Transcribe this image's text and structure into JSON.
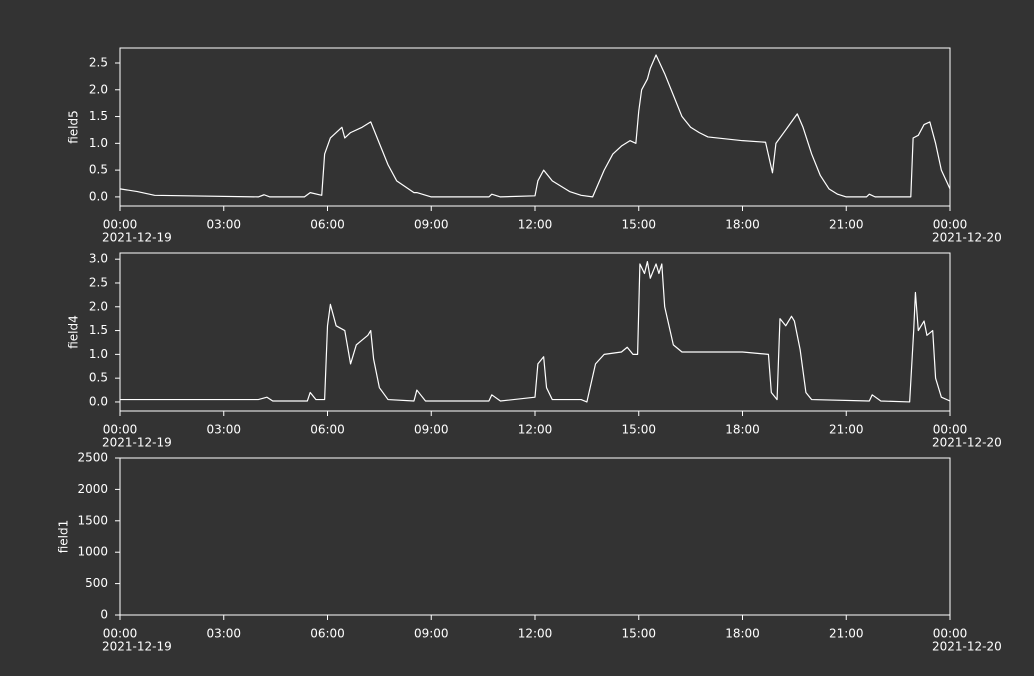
{
  "chart_data": [
    {
      "type": "line",
      "y_label": "field5",
      "color": "#ffffff",
      "x": [
        "2021-12-19 00:00",
        "2021-12-19 00:30",
        "2021-12-19 01:00",
        "2021-12-19 04:00",
        "2021-12-19 04:10",
        "2021-12-19 04:20",
        "2021-12-19 05:20",
        "2021-12-19 05:30",
        "2021-12-19 05:50",
        "2021-12-19 05:55",
        "2021-12-19 06:05",
        "2021-12-19 06:20",
        "2021-12-19 06:25",
        "2021-12-19 06:30",
        "2021-12-19 06:40",
        "2021-12-19 07:00",
        "2021-12-19 07:15",
        "2021-12-19 07:30",
        "2021-12-19 07:45",
        "2021-12-19 08:00",
        "2021-12-19 08:30",
        "2021-12-19 08:35",
        "2021-12-19 09:00",
        "2021-12-19 10:40",
        "2021-12-19 10:45",
        "2021-12-19 11:00",
        "2021-12-19 12:00",
        "2021-12-19 12:05",
        "2021-12-19 12:15",
        "2021-12-19 12:30",
        "2021-12-19 13:00",
        "2021-12-19 13:20",
        "2021-12-19 13:40",
        "2021-12-19 14:00",
        "2021-12-19 14:15",
        "2021-12-19 14:30",
        "2021-12-19 14:45",
        "2021-12-19 14:55",
        "2021-12-19 15:00",
        "2021-12-19 15:05",
        "2021-12-19 15:15",
        "2021-12-19 15:20",
        "2021-12-19 15:30",
        "2021-12-19 15:45",
        "2021-12-19 16:00",
        "2021-12-19 16:15",
        "2021-12-19 16:30",
        "2021-12-19 16:45",
        "2021-12-19 17:00",
        "2021-12-19 18:00",
        "2021-12-19 18:40",
        "2021-12-19 18:52",
        "2021-12-19 18:58",
        "2021-12-19 19:15",
        "2021-12-19 19:25",
        "2021-12-19 19:35",
        "2021-12-19 19:45",
        "2021-12-19 20:00",
        "2021-12-19 20:15",
        "2021-12-19 20:30",
        "2021-12-19 20:45",
        "2021-12-19 21:00",
        "2021-12-19 21:35",
        "2021-12-19 21:40",
        "2021-12-19 21:50",
        "2021-12-19 22:52",
        "2021-12-19 22:56",
        "2021-12-19 23:05",
        "2021-12-19 23:15",
        "2021-12-19 23:25",
        "2021-12-19 23:35",
        "2021-12-19 23:45",
        "2021-12-20 00:00"
      ],
      "values": [
        0.15,
        0.1,
        0.03,
        0.0,
        0.04,
        0.0,
        0.0,
        0.08,
        0.03,
        0.8,
        1.1,
        1.25,
        1.3,
        1.1,
        1.2,
        1.3,
        1.4,
        1.0,
        0.6,
        0.3,
        0.08,
        0.08,
        0.0,
        0.0,
        0.05,
        0.0,
        0.02,
        0.3,
        0.5,
        0.3,
        0.1,
        0.03,
        0.0,
        0.5,
        0.8,
        0.95,
        1.05,
        1.0,
        1.6,
        2.0,
        2.2,
        2.4,
        2.65,
        2.3,
        1.9,
        1.5,
        1.3,
        1.2,
        1.12,
        1.05,
        1.02,
        0.45,
        1.0,
        1.25,
        1.4,
        1.55,
        1.3,
        0.8,
        0.4,
        0.15,
        0.05,
        0.0,
        0.0,
        0.05,
        0.0,
        0.0,
        1.1,
        1.15,
        1.35,
        1.4,
        1.0,
        0.5,
        0.15
      ],
      "xlim": [
        "2021-12-19 00:00",
        "2021-12-20 00:00"
      ],
      "xticks": [
        {
          "value": "2021-12-19 00:00",
          "label": "00:00"
        },
        {
          "value": "2021-12-19 03:00",
          "label": "03:00"
        },
        {
          "value": "2021-12-19 06:00",
          "label": "06:00"
        },
        {
          "value": "2021-12-19 09:00",
          "label": "09:00"
        },
        {
          "value": "2021-12-19 12:00",
          "label": "12:00"
        },
        {
          "value": "2021-12-19 15:00",
          "label": "15:00"
        },
        {
          "value": "2021-12-19 18:00",
          "label": "18:00"
        },
        {
          "value": "2021-12-19 21:00",
          "label": "21:00"
        },
        {
          "value": "2021-12-20 00:00",
          "label": "00:00"
        }
      ],
      "xtick_dates": [
        {
          "value": "2021-12-19 00:00",
          "label": "2021-12-19"
        },
        {
          "value": "2021-12-20 00:00",
          "label": "2021-12-20"
        }
      ],
      "ylim": [
        -0.17,
        2.78
      ],
      "yticks": [
        {
          "value": 0,
          "label": "0.0"
        },
        0.5,
        {
          "value": 1,
          "label": "1.0"
        },
        1.5,
        {
          "value": 2,
          "label": "2.0"
        },
        2.5
      ]
    },
    {
      "type": "line",
      "y_label": "field4",
      "color": "#ffffff",
      "x": [
        "2021-12-19 00:00",
        "2021-12-19 04:00",
        "2021-12-19 04:15",
        "2021-12-19 04:25",
        "2021-12-19 05:25",
        "2021-12-19 05:30",
        "2021-12-19 05:40",
        "2021-12-19 05:55",
        "2021-12-19 06:00",
        "2021-12-19 06:05",
        "2021-12-19 06:15",
        "2021-12-19 06:30",
        "2021-12-19 06:40",
        "2021-12-19 06:50",
        "2021-12-19 07:00",
        "2021-12-19 07:10",
        "2021-12-19 07:15",
        "2021-12-19 07:20",
        "2021-12-19 07:30",
        "2021-12-19 07:45",
        "2021-12-19 08:30",
        "2021-12-19 08:35",
        "2021-12-19 08:50",
        "2021-12-19 10:40",
        "2021-12-19 10:45",
        "2021-12-19 11:00",
        "2021-12-19 12:00",
        "2021-12-19 12:05",
        "2021-12-19 12:15",
        "2021-12-19 12:20",
        "2021-12-19 12:30",
        "2021-12-19 13:20",
        "2021-12-19 13:30",
        "2021-12-19 13:45",
        "2021-12-19 14:00",
        "2021-12-19 14:30",
        "2021-12-19 14:40",
        "2021-12-19 14:50",
        "2021-12-19 14:58",
        "2021-12-19 15:02",
        "2021-12-19 15:10",
        "2021-12-19 15:15",
        "2021-12-19 15:20",
        "2021-12-19 15:30",
        "2021-12-19 15:35",
        "2021-12-19 15:40",
        "2021-12-19 15:45",
        "2021-12-19 16:00",
        "2021-12-19 16:15",
        "2021-12-19 17:00",
        "2021-12-19 18:00",
        "2021-12-19 18:45",
        "2021-12-19 18:50",
        "2021-12-19 19:00",
        "2021-12-19 19:05",
        "2021-12-19 19:15",
        "2021-12-19 19:25",
        "2021-12-19 19:30",
        "2021-12-19 19:40",
        "2021-12-19 19:50",
        "2021-12-19 20:00",
        "2021-12-19 21:40",
        "2021-12-19 21:45",
        "2021-12-19 22:00",
        "2021-12-19 22:50",
        "2021-12-19 22:57",
        "2021-12-19 23:00",
        "2021-12-19 23:05",
        "2021-12-19 23:15",
        "2021-12-19 23:20",
        "2021-12-19 23:30",
        "2021-12-19 23:35",
        "2021-12-19 23:45",
        "2021-12-20 00:00"
      ],
      "values": [
        0.05,
        0.05,
        0.1,
        0.02,
        0.02,
        0.2,
        0.05,
        0.05,
        1.6,
        2.05,
        1.6,
        1.5,
        0.8,
        1.2,
        1.3,
        1.4,
        1.5,
        0.9,
        0.3,
        0.05,
        0.02,
        0.25,
        0.02,
        0.02,
        0.15,
        0.02,
        0.1,
        0.8,
        0.95,
        0.3,
        0.05,
        0.05,
        0.0,
        0.8,
        1.0,
        1.05,
        1.15,
        1.0,
        1.0,
        2.9,
        2.7,
        2.95,
        2.6,
        2.9,
        2.7,
        2.9,
        2.0,
        1.2,
        1.05,
        1.05,
        1.05,
        1.0,
        0.2,
        0.05,
        1.75,
        1.6,
        1.8,
        1.7,
        1.1,
        0.2,
        0.05,
        0.02,
        0.15,
        0.02,
        0.0,
        1.5,
        2.3,
        1.5,
        1.7,
        1.4,
        1.5,
        0.5,
        0.1,
        0.02
      ],
      "xlim": [
        "2021-12-19 00:00",
        "2021-12-20 00:00"
      ],
      "xticks": [
        {
          "value": "2021-12-19 00:00",
          "label": "00:00"
        },
        {
          "value": "2021-12-19 03:00",
          "label": "03:00"
        },
        {
          "value": "2021-12-19 06:00",
          "label": "06:00"
        },
        {
          "value": "2021-12-19 09:00",
          "label": "09:00"
        },
        {
          "value": "2021-12-19 12:00",
          "label": "12:00"
        },
        {
          "value": "2021-12-19 15:00",
          "label": "15:00"
        },
        {
          "value": "2021-12-19 18:00",
          "label": "18:00"
        },
        {
          "value": "2021-12-19 21:00",
          "label": "21:00"
        },
        {
          "value": "2021-12-20 00:00",
          "label": "00:00"
        }
      ],
      "xtick_dates": [
        {
          "value": "2021-12-19 00:00",
          "label": "2021-12-19"
        },
        {
          "value": "2021-12-20 00:00",
          "label": "2021-12-20"
        }
      ],
      "ylim": [
        -0.19,
        3.13
      ],
      "yticks": [
        {
          "value": 0,
          "label": "0.0"
        },
        0.5,
        {
          "value": 1,
          "label": "1.0"
        },
        1.5,
        {
          "value": 2,
          "label": "2.0"
        },
        2.5,
        {
          "value": 3,
          "label": "3.0"
        }
      ]
    },
    {
      "type": "line",
      "y_label": "field1",
      "color": "#ffffff",
      "x": [],
      "values": [],
      "xlim": [
        "2021-12-19 00:00",
        "2021-12-20 00:00"
      ],
      "xticks": [
        {
          "value": "2021-12-19 00:00",
          "label": "00:00"
        },
        {
          "value": "2021-12-19 03:00",
          "label": "03:00"
        },
        {
          "value": "2021-12-19 06:00",
          "label": "06:00"
        },
        {
          "value": "2021-12-19 09:00",
          "label": "09:00"
        },
        {
          "value": "2021-12-19 12:00",
          "label": "12:00"
        },
        {
          "value": "2021-12-19 15:00",
          "label": "15:00"
        },
        {
          "value": "2021-12-19 18:00",
          "label": "18:00"
        },
        {
          "value": "2021-12-19 21:00",
          "label": "21:00"
        },
        {
          "value": "2021-12-20 00:00",
          "label": "00:00"
        }
      ],
      "xtick_dates": [
        {
          "value": "2021-12-19 00:00",
          "label": "2021-12-19"
        },
        {
          "value": "2021-12-20 00:00",
          "label": "2021-12-20"
        }
      ],
      "ylim": [
        0,
        2500
      ],
      "yticks": [
        0,
        500,
        1000,
        1500,
        2000,
        2500
      ]
    }
  ]
}
